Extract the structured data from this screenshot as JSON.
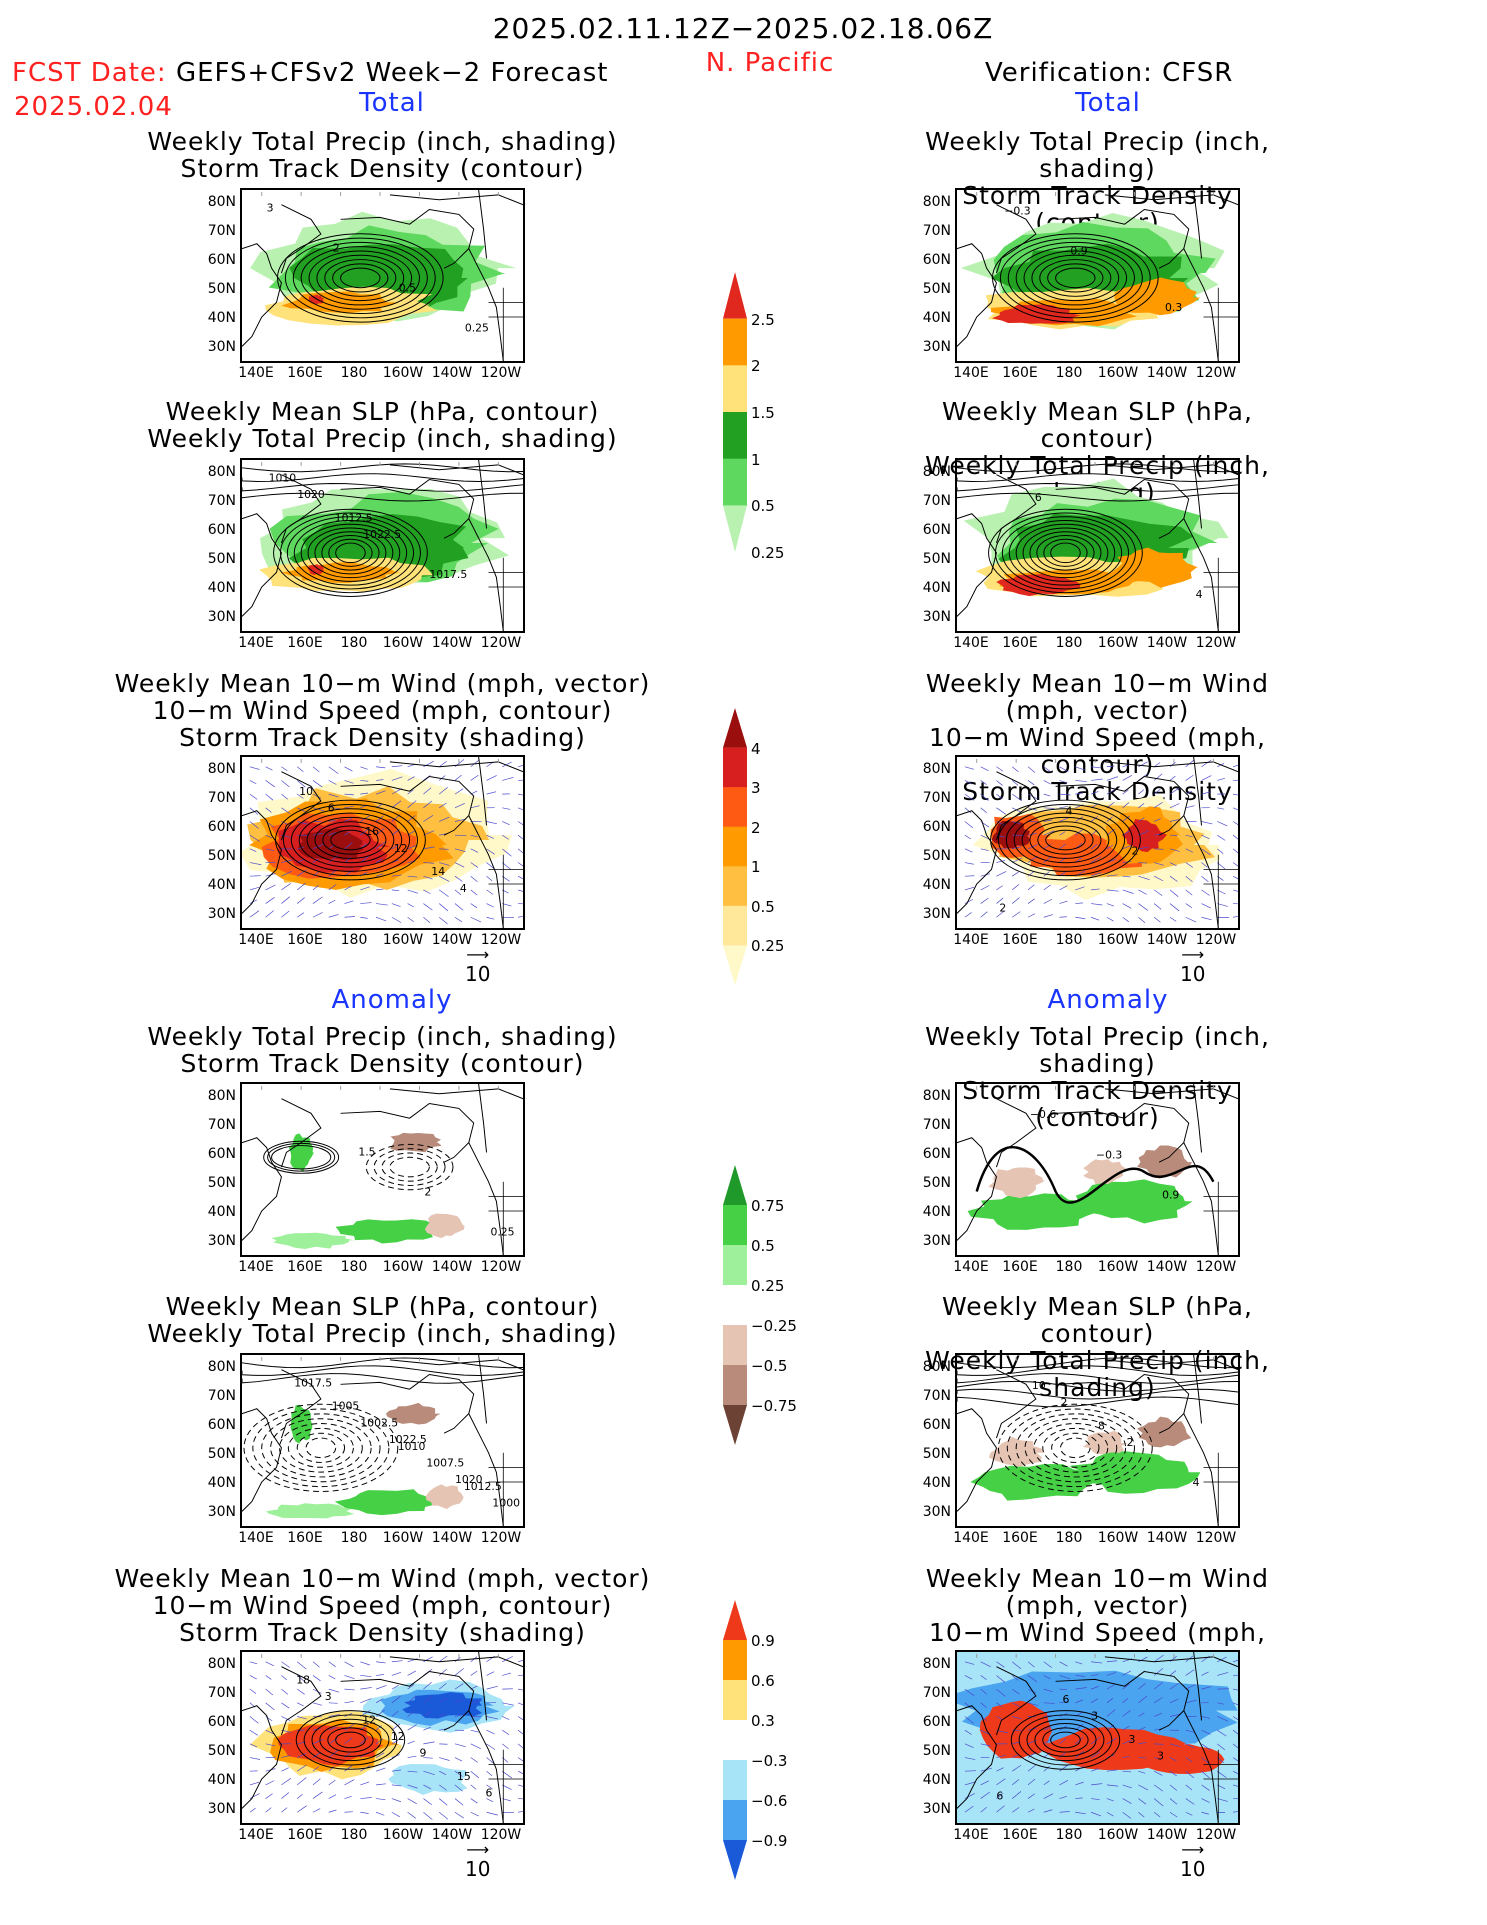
{
  "header": {
    "period": "2025.02.11.12Z−2025.02.18.06Z",
    "region": "N. Pacific",
    "fcst_label": "FCST Date:",
    "fcst_model": "GEFS+CFSv2 Week−2 Forecast",
    "fcst_date": "2025.02.04",
    "verification": "Verification: CFSR"
  },
  "section_labels": {
    "total": "Total",
    "anomaly": "Anomaly"
  },
  "titles": {
    "precip_storm": [
      "Weekly Total Precip (inch, shading)",
      "Storm Track Density (contour)"
    ],
    "slp_precip": [
      "Weekly Mean SLP (hPa, contour)",
      "Weekly Total Precip (inch, shading)"
    ],
    "wind_storm": [
      "Weekly Mean 10−m Wind (mph, vector)",
      "10−m Wind Speed (mph, contour)",
      "Storm Track Density (shading)"
    ]
  },
  "axes": {
    "lat_ticks": [
      "80N",
      "70N",
      "60N",
      "50N",
      "40N",
      "30N"
    ],
    "lon_ticks": [
      "140E",
      "160E",
      "180",
      "160W",
      "140W",
      "120W"
    ]
  },
  "vector_ref": "10",
  "colorbars": {
    "precip_total": {
      "labels": [
        "2.5",
        "2",
        "1.5",
        "1",
        "0.5",
        "0.25"
      ],
      "colors": [
        "#e0281e",
        "#ff9a00",
        "#ffe27a",
        "#22a022",
        "#5fd85f",
        "#b9f2b0"
      ]
    },
    "storm_total": {
      "labels": [
        "4",
        "3",
        "2",
        "1",
        "0.5",
        "0.25"
      ],
      "colors": [
        "#9a0e0e",
        "#d81f1f",
        "#ff5a14",
        "#ff9a00",
        "#ffbf40",
        "#ffe89a",
        "#fff8c8"
      ]
    },
    "precip_anom": {
      "labels": [
        "0.75",
        "0.5",
        "0.25",
        "−0.25",
        "−0.5",
        "−0.75"
      ],
      "colors": [
        "#1f9a2a",
        "#46d046",
        "#9ff09a",
        "#ffffff",
        "#e6c4b4",
        "#b88b7a",
        "#6b4234"
      ]
    },
    "storm_anom": {
      "labels": [
        "0.9",
        "0.6",
        "0.3",
        "−0.3",
        "−0.6",
        "−0.9"
      ],
      "colors": [
        "#ee3a1a",
        "#ff9a00",
        "#ffe27a",
        "#ffffff",
        "#a8e4f8",
        "#4aa4f0",
        "#1a5ad8"
      ]
    }
  },
  "panels": [
    {
      "id": "fc-total-precip",
      "contour_labels": [
        "3",
        "2",
        "0.5",
        "0.25"
      ]
    },
    {
      "id": "fc-total-slp",
      "contour_labels": [
        "1020",
        "1022.5",
        "1017.5",
        "1010",
        "1012.5"
      ]
    },
    {
      "id": "fc-total-wind",
      "contour_labels": [
        "6",
        "12",
        "4",
        "10",
        "16",
        "14"
      ]
    },
    {
      "id": "vf-total-precip",
      "contour_labels": [
        "1.5",
        "2",
        "0.25"
      ]
    },
    {
      "id": "vf-total-slp",
      "contour_labels": [
        "1022.5",
        "1020",
        "1017.5",
        "1002.5",
        "1007.5",
        "1000",
        "1005",
        "1010",
        "1012.5"
      ]
    },
    {
      "id": "vf-total-wind",
      "contour_labels": [
        "9",
        "6",
        "3",
        "12",
        "15",
        "18",
        "12"
      ]
    },
    {
      "id": "fc-anom-precip",
      "contour_labels": [
        "0.3",
        "−0.3",
        "0.9"
      ]
    },
    {
      "id": "fc-anom-slp",
      "contour_labels": [
        "4",
        "6"
      ]
    },
    {
      "id": "fc-anom-wind",
      "contour_labels": [
        "2",
        "4",
        "2"
      ]
    },
    {
      "id": "vf-anom-precip",
      "contour_labels": [
        "−0.6",
        "−0.3",
        "0.9"
      ]
    },
    {
      "id": "vf-anom-slp",
      "contour_labels": [
        "2",
        "2",
        "4",
        "10",
        "8"
      ]
    },
    {
      "id": "vf-anom-wind",
      "contour_labels": [
        "3",
        "3",
        "6",
        "6",
        "3"
      ]
    }
  ]
}
